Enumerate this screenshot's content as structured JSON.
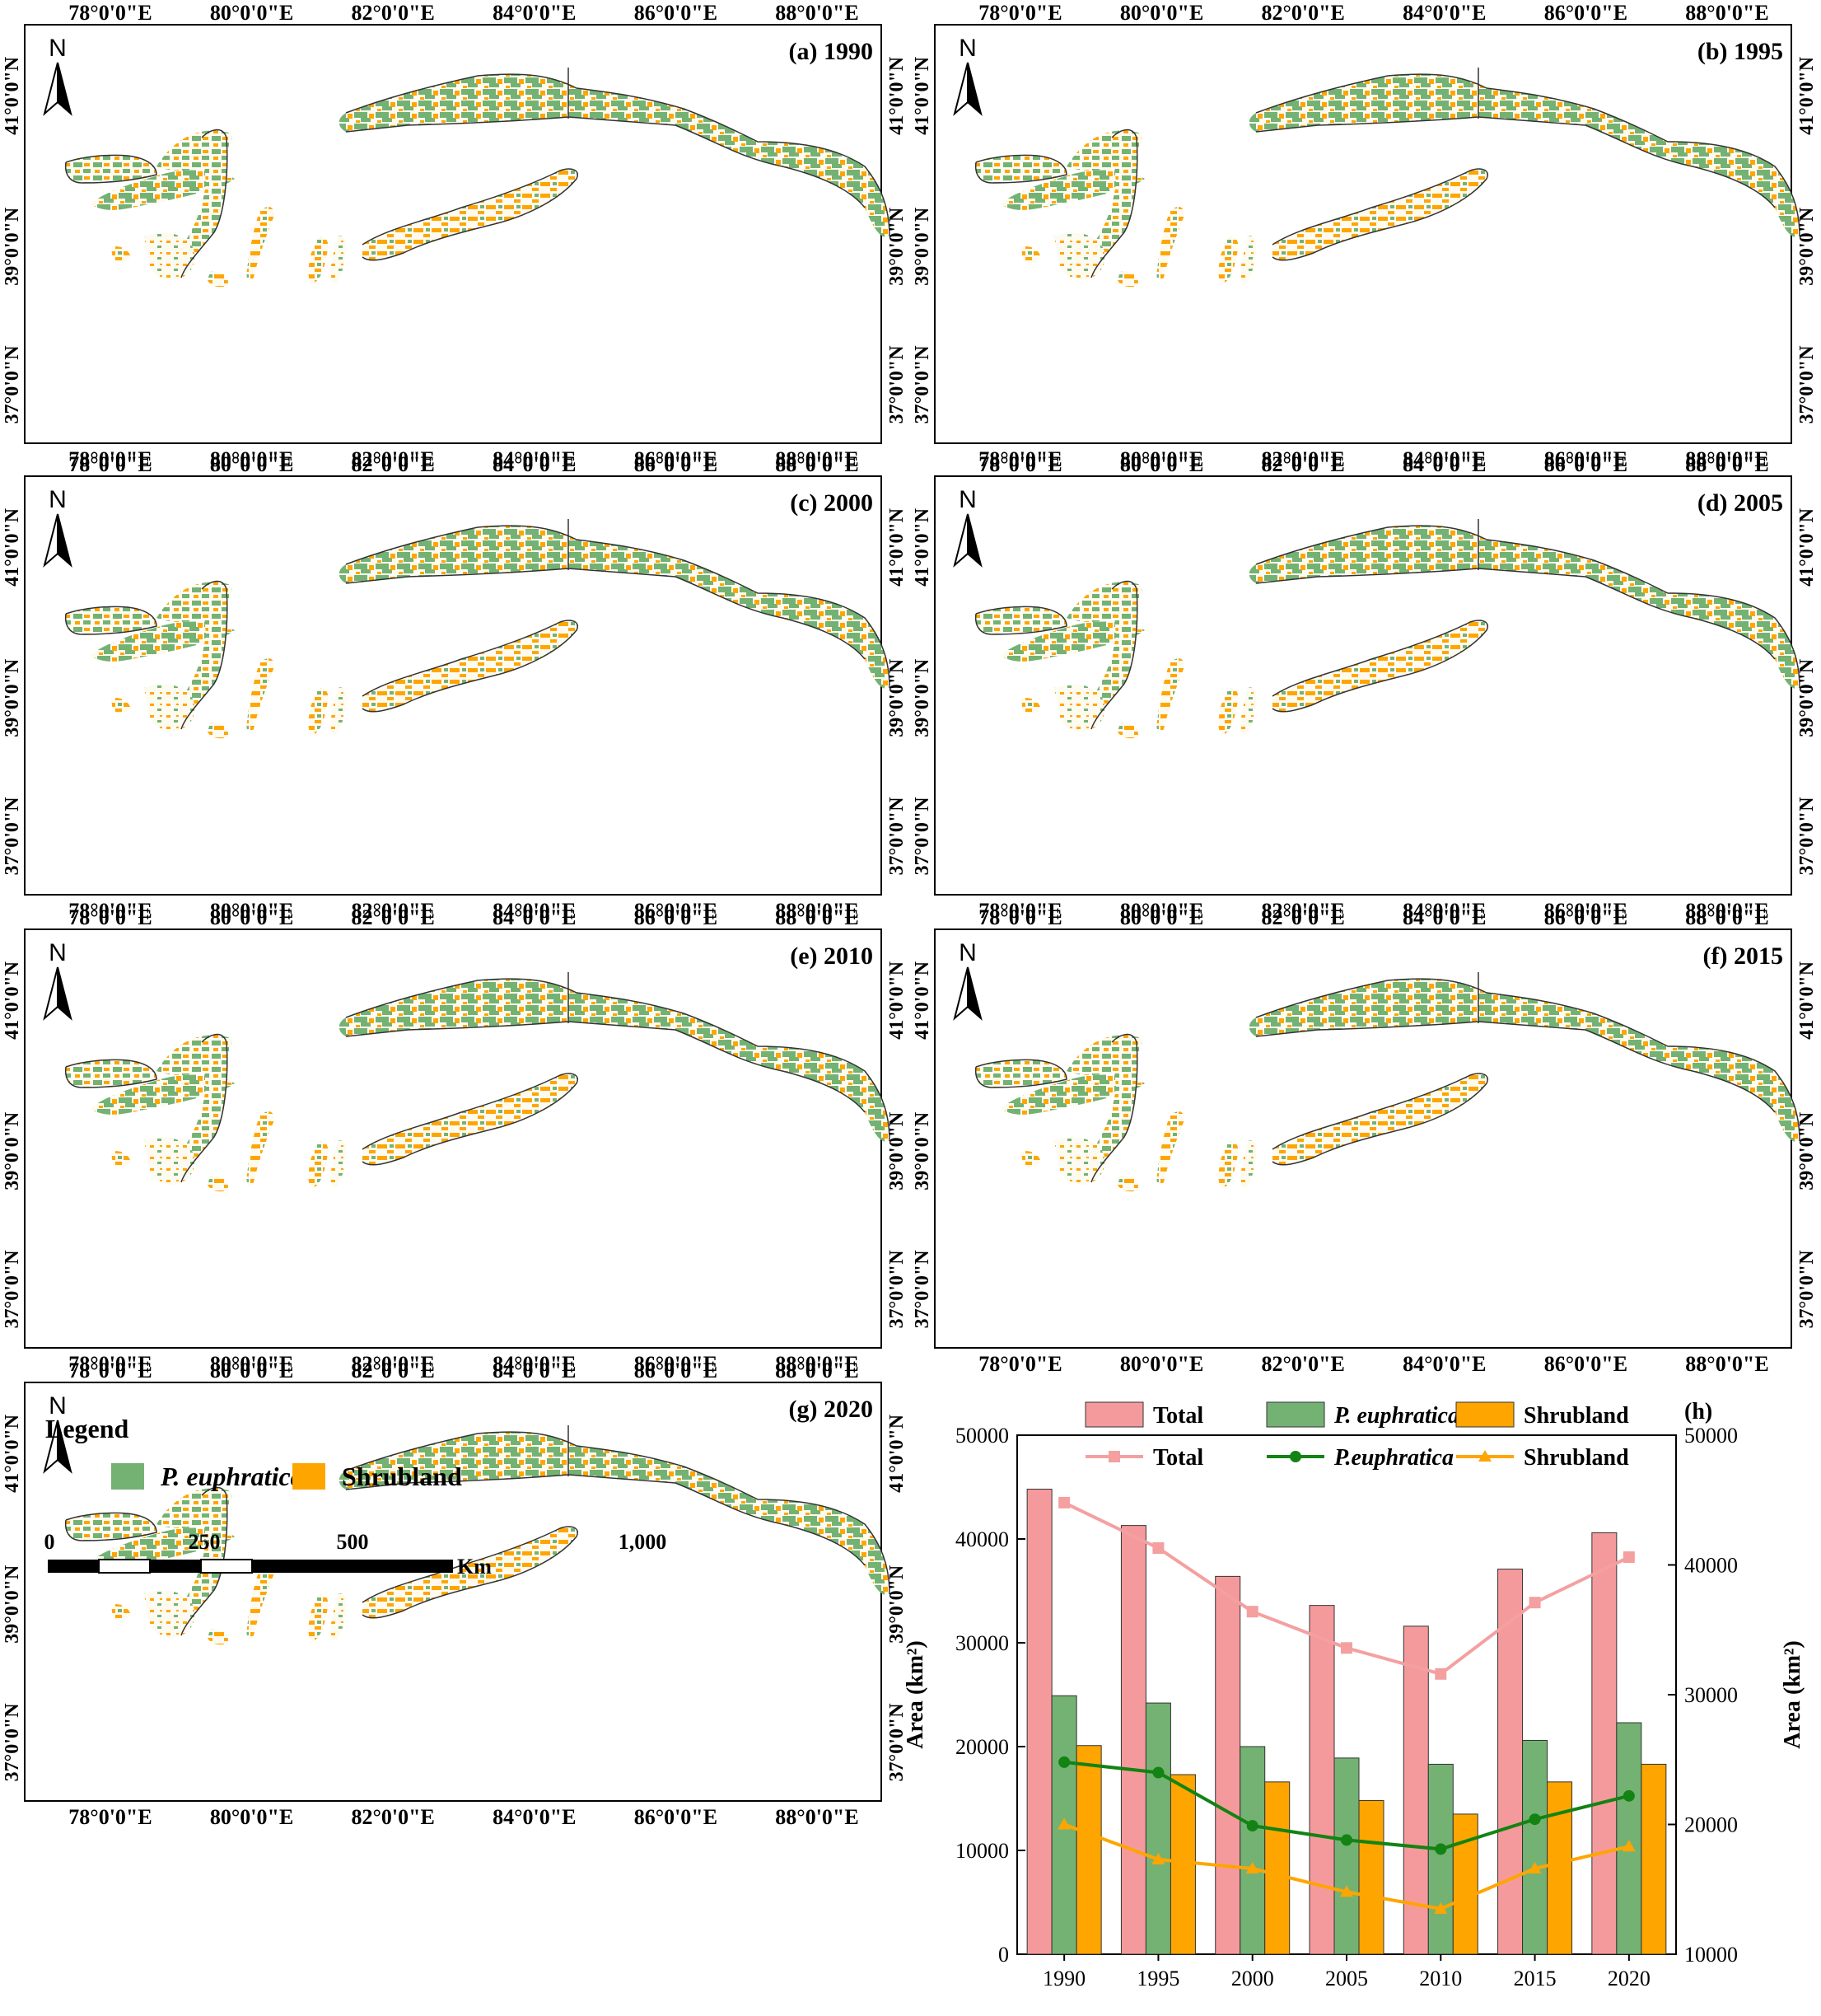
{
  "maps": {
    "lon_ticks": [
      "78°0'0\"E",
      "80°0'0\"E",
      "82°0'0\"E",
      "84°0'0\"E",
      "86°0'0\"E",
      "88°0'0\"E"
    ],
    "lat_ticks": [
      "41°0'0\"N",
      "39°0'0\"N",
      "37°0'0\"N"
    ],
    "north_label": "N",
    "panels": [
      {
        "title": "(a) 1990"
      },
      {
        "title": "(b) 1995"
      },
      {
        "title": "(c) 2000"
      },
      {
        "title": "(d) 2005"
      },
      {
        "title": "(e) 2010"
      },
      {
        "title": "(f) 2015"
      },
      {
        "title": "(g) 2020"
      }
    ],
    "colors": {
      "euphratica": "#74b274",
      "shrubland": "#ffa500",
      "boundary": "#333333",
      "fill": "#fdfaf0"
    }
  },
  "legend": {
    "title": "Legend",
    "items": [
      {
        "label": "P. euphratica",
        "color": "#74b274"
      },
      {
        "label": "Shrubland",
        "color": "#ffa500"
      }
    ]
  },
  "scalebar": {
    "labels": [
      "0",
      "250",
      "500",
      "1,000"
    ],
    "unit": "Km"
  },
  "chart_data": {
    "type": "bar",
    "panel_label": "(h)",
    "categories": [
      "1990",
      "1995",
      "2000",
      "2005",
      "2010",
      "2015",
      "2020"
    ],
    "series": [
      {
        "name": "Total",
        "kind": "bar",
        "color": "#f59a9c",
        "values": [
          44800,
          41300,
          36400,
          33600,
          31600,
          37100,
          40600
        ]
      },
      {
        "name": "P. euphratica",
        "kind": "bar",
        "color": "#74b274",
        "values": [
          24900,
          24200,
          20000,
          18900,
          18300,
          20600,
          22300
        ]
      },
      {
        "name": "Shrubland",
        "kind": "bar",
        "color": "#ffa500",
        "values": [
          20100,
          17300,
          16600,
          14800,
          13500,
          16600,
          18300
        ]
      },
      {
        "name": "Total",
        "kind": "line",
        "axis": "right",
        "color": "#f4a0a0",
        "marker": "square",
        "values": [
          44800,
          41300,
          36400,
          33600,
          31600,
          37100,
          40600
        ]
      },
      {
        "name": "P.euphratica",
        "kind": "line",
        "axis": "right",
        "color": "#138313",
        "marker": "circle",
        "values": [
          24800,
          24000,
          19900,
          18800,
          18100,
          20400,
          22200
        ]
      },
      {
        "name": "Shrubland",
        "kind": "line",
        "axis": "right",
        "color": "#ffa500",
        "marker": "triangle",
        "values": [
          20000,
          17300,
          16600,
          14800,
          13500,
          16600,
          18300
        ]
      }
    ],
    "ylabel": "Area (km²)",
    "ylabel_right": "Area (km²)",
    "ylim": [
      0,
      50000
    ],
    "ylim_right": [
      10000,
      50000
    ],
    "yticks": [
      "0",
      "10000",
      "20000",
      "30000",
      "40000",
      "50000"
    ],
    "yticks_right": [
      "10000",
      "20000",
      "30000",
      "40000",
      "50000"
    ],
    "grid": false,
    "legend_position": "top"
  }
}
